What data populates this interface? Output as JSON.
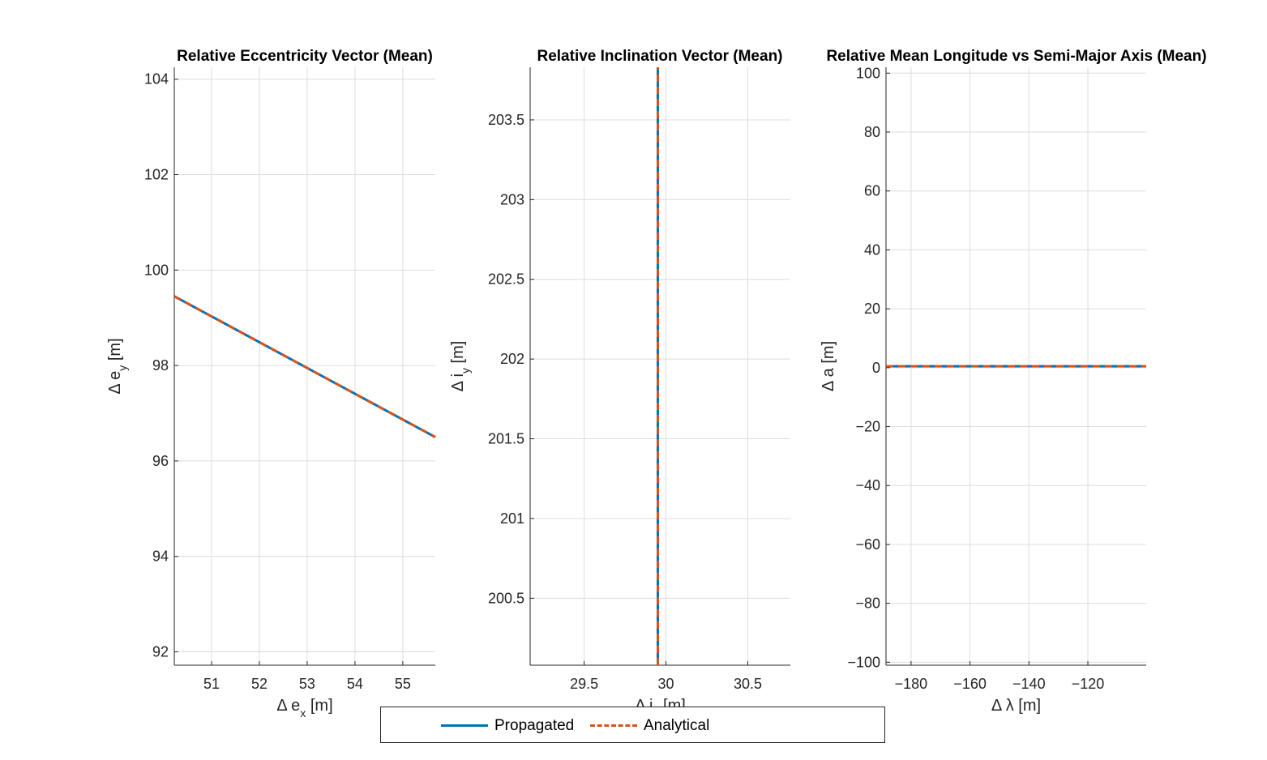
{
  "colors": {
    "propagated": "#0072BD",
    "analytical": "#D95319",
    "grid": "#DCDCDC",
    "axis": "#262626"
  },
  "legend": {
    "propagated": "Propagated",
    "analytical": "Analytical"
  },
  "chart_data": [
    {
      "type": "line",
      "title": "Relative Eccentricity Vector (Mean)",
      "xlabel": "Δ e",
      "xlabel_sub": "x",
      "xlabel_unit": "[m]",
      "ylabel": "Δ e",
      "ylabel_sub": "y",
      "ylabel_unit": "[m]",
      "xlim": [
        50.22,
        55.68
      ],
      "ylim": [
        91.72,
        104.25
      ],
      "xticks": [
        51,
        52,
        53,
        54,
        55
      ],
      "yticks": [
        92,
        94,
        96,
        98,
        100,
        102,
        104
      ],
      "grid": true,
      "series": [
        {
          "name": "Propagated",
          "style": "solid",
          "x": [
            50.22,
            55.68
          ],
          "y": [
            99.45,
            96.5
          ]
        },
        {
          "name": "Analytical",
          "style": "dashed",
          "x": [
            50.22,
            55.68
          ],
          "y": [
            99.45,
            96.5
          ]
        }
      ]
    },
    {
      "type": "line",
      "title": "Relative Inclination Vector (Mean)",
      "xlabel": "Δ i",
      "xlabel_sub": "x",
      "xlabel_unit": "[m]",
      "ylabel": "Δ i",
      "ylabel_sub": "y",
      "ylabel_unit": "[m]",
      "xlim": [
        29.17,
        30.76
      ],
      "ylim": [
        200.08,
        203.83
      ],
      "xticks": [
        29.5,
        30,
        30.5
      ],
      "yticks": [
        200.5,
        201,
        201.5,
        202,
        202.5,
        203,
        203.5
      ],
      "grid": true,
      "series": [
        {
          "name": "Propagated",
          "style": "solid",
          "x": [
            29.95,
            29.95
          ],
          "y": [
            200.08,
            203.83
          ]
        },
        {
          "name": "Analytical",
          "style": "dashed",
          "x": [
            29.95,
            29.95
          ],
          "y": [
            200.08,
            203.83
          ]
        }
      ]
    },
    {
      "type": "line",
      "title": "Relative Mean Longitude vs Semi-Major Axis (Mean)",
      "xlabel": "Δ  λ",
      "xlabel_sub": "",
      "xlabel_unit": "[m]",
      "ylabel": "Δ a",
      "ylabel_sub": "",
      "ylabel_unit": "[m]",
      "xlim": [
        -188.5,
        -100.2
      ],
      "ylim": [
        -101,
        102
      ],
      "xticks": [
        -180,
        -160,
        -140,
        -120
      ],
      "yticks": [
        -100,
        -80,
        -60,
        -40,
        -20,
        0,
        20,
        40,
        60,
        80,
        100
      ],
      "grid": true,
      "series": [
        {
          "name": "Propagated",
          "style": "solid",
          "x": [
            -188.5,
            -100.2
          ],
          "y": [
            0.5,
            0.5
          ]
        },
        {
          "name": "Analytical",
          "style": "dashed",
          "x": [
            -188.5,
            -100.2
          ],
          "y": [
            0.5,
            0.5
          ]
        }
      ]
    }
  ]
}
